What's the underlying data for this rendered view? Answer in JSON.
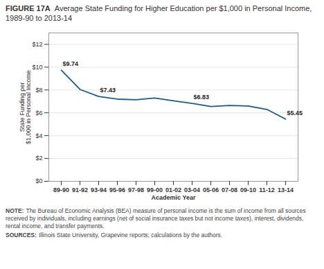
{
  "chart_data": {
    "type": "line",
    "title": "FIGURE 17A",
    "subtitle": "Average State Funding for Higher Education per $1,000 in Personal Income, 1989-90 to 2013-14",
    "categories": [
      "89-90",
      "91-92",
      "93-94",
      "95-96",
      "97-98",
      "99-00",
      "01-02",
      "03-04",
      "05-06",
      "07-08",
      "09-10",
      "11-12",
      "13-14"
    ],
    "values": [
      9.74,
      8.05,
      7.43,
      7.2,
      7.15,
      7.3,
      7.05,
      6.83,
      6.55,
      6.65,
      6.6,
      6.3,
      5.45
    ],
    "color": "#1a5a8a",
    "xlabel": "Academic Year",
    "ylabel": "State Funding per\n$1,000 in Personal Income",
    "ylim": [
      0,
      13
    ],
    "yticks": [
      {
        "value": 0,
        "label": "$0"
      },
      {
        "value": 2,
        "label": "$2"
      },
      {
        "value": 4,
        "label": "$4"
      },
      {
        "value": 6,
        "label": "$6"
      },
      {
        "value": 8,
        "label": "$8"
      },
      {
        "value": 10,
        "label": "$10"
      },
      {
        "value": 12,
        "label": "$12"
      }
    ],
    "grid": true,
    "annotations": [
      {
        "category": "89-90",
        "value": 9.74,
        "text": "$9.74"
      },
      {
        "category": "93-94",
        "value": 7.43,
        "text": "$7.43"
      },
      {
        "category": "03-04",
        "value": 6.83,
        "text": "$6.83"
      },
      {
        "category": "13-14",
        "value": 5.45,
        "text": "$5.45"
      }
    ],
    "note": {
      "label": "NOTE:",
      "text": "The Bureau of Economic Analysis (BEA) measure of personal income is the sum of income from all sources received by individuals, including earnings (net of social insurance taxes but not income taxes), interest, dividends, rental income, and transfer payments."
    },
    "source": {
      "label": "SOURCES:",
      "text": "Illinois State University, Grapevine reports; calculations by the authors."
    }
  }
}
